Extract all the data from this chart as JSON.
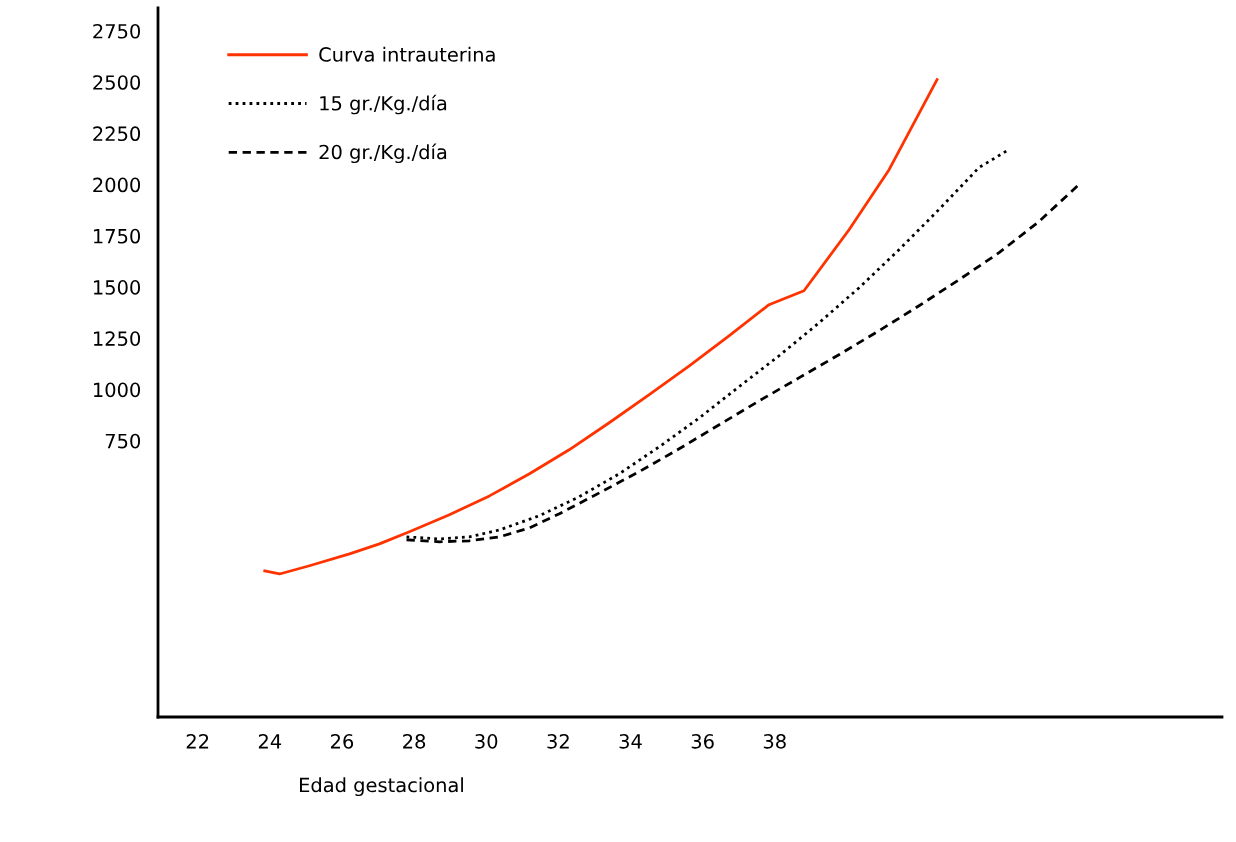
{
  "chart_data": {
    "type": "line",
    "xlabel": "Edad gestacional",
    "xlim": [
      20.9,
      50.4
    ],
    "xticks": [
      22,
      24,
      26,
      28,
      30,
      32,
      34,
      36,
      38
    ],
    "ylim": [
      -598,
      2862
    ],
    "yticks": [
      750,
      1000,
      1250,
      1500,
      1750,
      2000,
      2250,
      2500,
      2750
    ],
    "grid": false,
    "legend": "top left",
    "marker": "none",
    "series": [
      {
        "name": "Curva intrauterina",
        "color": "#ff3300",
        "line_style": "solid",
        "x": [
          23.86,
          24.27,
          25.1,
          26.21,
          27.04,
          27.87,
          28.98,
          30.09,
          31.2,
          32.3,
          33.41,
          34.52,
          35.63,
          36.74,
          37.84,
          38.81,
          40.06,
          41.17,
          42.5
        ],
        "values": [
          115,
          100,
          140,
          198,
          247,
          306,
          389,
          481,
          589,
          706,
          838,
          975,
          1116,
          1263,
          1414,
          1482,
          1780,
          2073,
          2513
        ]
      },
      {
        "name": "15 gr./Kg./día",
        "color": "#000000",
        "line_style": "dotted",
        "x": [
          27.79,
          28.7,
          29.53,
          30.37,
          31.47,
          32.58,
          33.69,
          34.8,
          35.91,
          37.01,
          38.12,
          39.23,
          40.34,
          41.45,
          42.55,
          43.66,
          44.49
        ],
        "values": [
          281,
          271,
          281,
          315,
          384,
          477,
          589,
          721,
          862,
          1014,
          1165,
          1326,
          1497,
          1683,
          1878,
          2083,
          2171
        ]
      },
      {
        "name": "20 gr./Kg./día",
        "color": "#000000",
        "line_style": "dashed",
        "x": [
          27.79,
          28.7,
          29.53,
          30.37,
          31.2,
          32.03,
          33.14,
          34.24,
          35.35,
          36.46,
          37.57,
          38.68,
          39.78,
          40.89,
          42.0,
          43.11,
          44.22,
          45.32,
          46.43
        ],
        "values": [
          267,
          257,
          262,
          281,
          325,
          394,
          496,
          599,
          711,
          828,
          945,
          1058,
          1170,
          1287,
          1409,
          1536,
          1668,
          1819,
          2000
        ]
      }
    ]
  }
}
